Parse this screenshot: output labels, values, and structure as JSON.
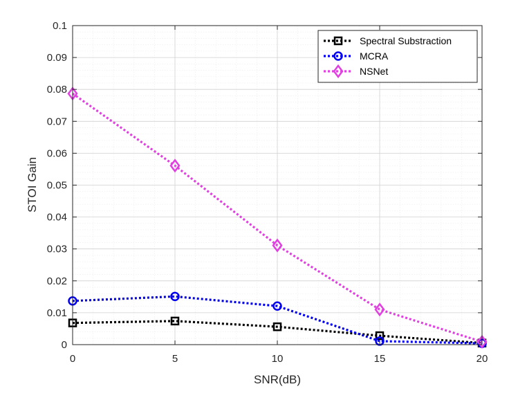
{
  "chart_data": {
    "type": "line",
    "title": "",
    "xlabel": "SNR(dB)",
    "ylabel": "STOI Gain",
    "x": [
      0,
      5,
      10,
      15,
      20
    ],
    "xlim": [
      0,
      20
    ],
    "ylim": [
      0,
      0.1
    ],
    "xticks": [
      "0",
      "5",
      "10",
      "15",
      "20"
    ],
    "yticks": [
      "0",
      "0.01",
      "0.02",
      "0.03",
      "0.04",
      "0.05",
      "0.06",
      "0.07",
      "0.08",
      "0.09",
      "0.1"
    ],
    "grid": true,
    "minor_grid": true,
    "legend_position": "top-right",
    "series": [
      {
        "name": "Spectral Substraction",
        "values": [
          0.0068,
          0.0074,
          0.0056,
          0.0028,
          0.0005
        ],
        "color": "#000000",
        "marker": "square"
      },
      {
        "name": "MCRA",
        "values": [
          0.0137,
          0.0151,
          0.0121,
          0.0011,
          0.0004
        ],
        "color": "#0000ee",
        "marker": "circle"
      },
      {
        "name": "NSNet",
        "values": [
          0.0787,
          0.0561,
          0.0311,
          0.011,
          0.0009
        ],
        "color": "#e040e0",
        "marker": "diamond"
      }
    ]
  }
}
